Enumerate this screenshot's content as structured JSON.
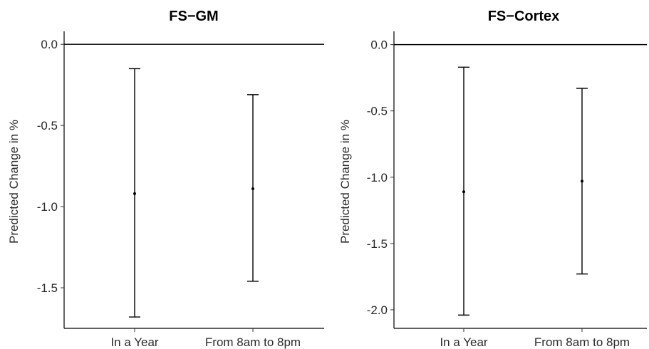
{
  "chart_data": [
    {
      "type": "errorbar",
      "title": "FS−GM",
      "xlabel": "",
      "ylabel": "Predicted Change in %",
      "categories": [
        "In a Year",
        "From 8am to 8pm"
      ],
      "estimates": [
        -0.92,
        -0.89
      ],
      "lower": [
        -1.68,
        -1.46
      ],
      "upper": [
        -0.15,
        -0.31
      ],
      "ylim": [
        -1.75,
        0.08
      ],
      "yticks": [
        0.0,
        -0.5,
        -1.0,
        -1.5
      ],
      "ytick_labels": [
        "0.0",
        "-0.5",
        "-1.0",
        "-1.5"
      ],
      "reference_line": 0.0,
      "grid": false
    },
    {
      "type": "errorbar",
      "title": "FS−Cortex",
      "xlabel": "",
      "ylabel": "Predicted Change in %",
      "categories": [
        "In a Year",
        "From 8am to 8pm"
      ],
      "estimates": [
        -1.11,
        -1.03
      ],
      "lower": [
        -2.04,
        -1.73
      ],
      "upper": [
        -0.17,
        -0.33
      ],
      "ylim": [
        -2.14,
        0.1
      ],
      "yticks": [
        0.0,
        -0.5,
        -1.0,
        -1.5,
        -2.0
      ],
      "ytick_labels": [
        "0.0",
        "-0.5",
        "-1.0",
        "-1.5",
        "-2.0"
      ],
      "reference_line": 0.0,
      "grid": false
    }
  ]
}
